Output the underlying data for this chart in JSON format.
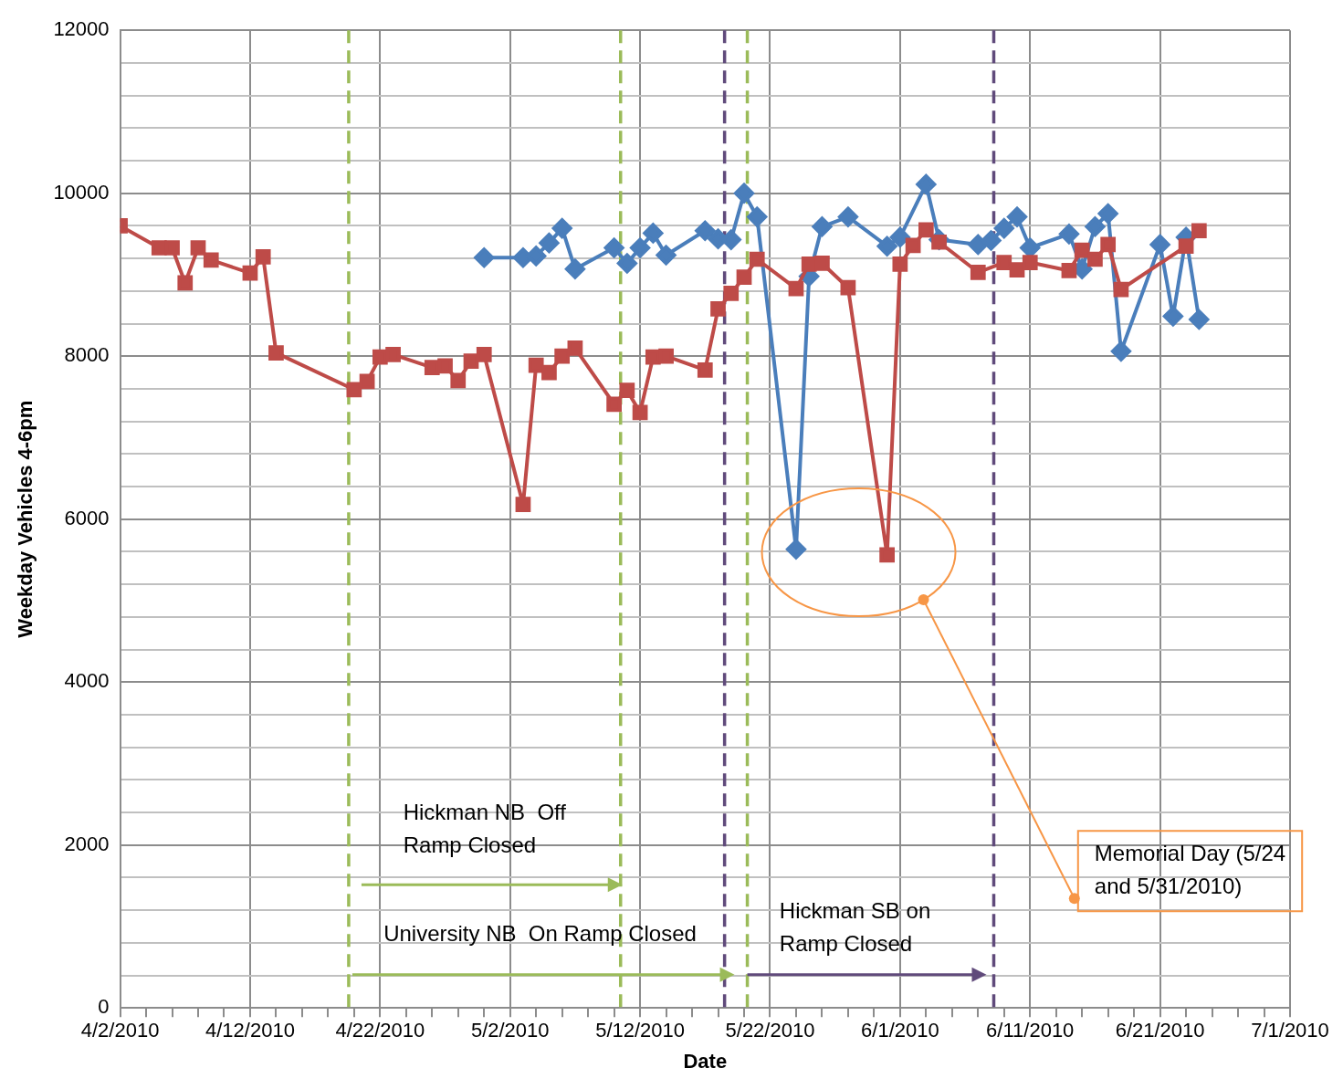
{
  "chart_data": {
    "type": "line",
    "xlabel": "Date",
    "ylabel": "Weekday Vehicles 4-6pm",
    "grid": true,
    "legend": false,
    "line_style": "solid",
    "xlim": [
      "2010-04-02",
      "2010-07-01"
    ],
    "xticks": [
      {
        "value": "2010-04-02",
        "label": "4/2/2010"
      },
      {
        "value": "2010-04-04",
        "label": null
      },
      {
        "value": "2010-04-06",
        "label": null
      },
      {
        "value": "2010-04-08",
        "label": null
      },
      {
        "value": "2010-04-10",
        "label": null
      },
      {
        "value": "2010-04-12",
        "label": "4/12/2010"
      },
      {
        "value": "2010-04-14",
        "label": null
      },
      {
        "value": "2010-04-16",
        "label": null
      },
      {
        "value": "2010-04-18",
        "label": null
      },
      {
        "value": "2010-04-20",
        "label": null
      },
      {
        "value": "2010-04-22",
        "label": "4/22/2010"
      },
      {
        "value": "2010-04-24",
        "label": null
      },
      {
        "value": "2010-04-26",
        "label": null
      },
      {
        "value": "2010-04-28",
        "label": null
      },
      {
        "value": "2010-04-30",
        "label": null
      },
      {
        "value": "2010-05-02",
        "label": "5/2/2010"
      },
      {
        "value": "2010-05-04",
        "label": null
      },
      {
        "value": "2010-05-06",
        "label": null
      },
      {
        "value": "2010-05-08",
        "label": null
      },
      {
        "value": "2010-05-10",
        "label": null
      },
      {
        "value": "2010-05-12",
        "label": "5/12/2010"
      },
      {
        "value": "2010-05-14",
        "label": null
      },
      {
        "value": "2010-05-16",
        "label": null
      },
      {
        "value": "2010-05-18",
        "label": null
      },
      {
        "value": "2010-05-20",
        "label": null
      },
      {
        "value": "2010-05-22",
        "label": "5/22/2010"
      },
      {
        "value": "2010-05-24",
        "label": null
      },
      {
        "value": "2010-05-26",
        "label": null
      },
      {
        "value": "2010-05-28",
        "label": null
      },
      {
        "value": "2010-05-30",
        "label": null
      },
      {
        "value": "2010-06-01",
        "label": "6/1/2010"
      },
      {
        "value": "2010-06-03",
        "label": null
      },
      {
        "value": "2010-06-05",
        "label": null
      },
      {
        "value": "2010-06-07",
        "label": null
      },
      {
        "value": "2010-06-09",
        "label": null
      },
      {
        "value": "2010-06-11",
        "label": "6/11/2010"
      },
      {
        "value": "2010-06-13",
        "label": null
      },
      {
        "value": "2010-06-15",
        "label": null
      },
      {
        "value": "2010-06-17",
        "label": null
      },
      {
        "value": "2010-06-19",
        "label": null
      },
      {
        "value": "2010-06-21",
        "label": "6/21/2010"
      },
      {
        "value": "2010-06-23",
        "label": null
      },
      {
        "value": "2010-06-25",
        "label": null
      },
      {
        "value": "2010-06-27",
        "label": null
      },
      {
        "value": "2010-06-29",
        "label": null
      },
      {
        "value": "2010-07-01",
        "label": "7/1/2010"
      }
    ],
    "ylim": [
      0,
      12000
    ],
    "yticks": [
      0,
      {
        "value": 400,
        "label": null
      },
      {
        "value": 800,
        "label": null
      },
      {
        "value": 1200,
        "label": null
      },
      {
        "value": 1600,
        "label": null
      },
      2000,
      {
        "value": 2400,
        "label": null
      },
      {
        "value": 2800,
        "label": null
      },
      {
        "value": 3200,
        "label": null
      },
      {
        "value": 3600,
        "label": null
      },
      4000,
      {
        "value": 4400,
        "label": null
      },
      {
        "value": 4800,
        "label": null
      },
      {
        "value": 5200,
        "label": null
      },
      {
        "value": 5600,
        "label": null
      },
      6000,
      {
        "value": 6400,
        "label": null
      },
      {
        "value": 6800,
        "label": null
      },
      {
        "value": 7200,
        "label": null
      },
      {
        "value": 7600,
        "label": null
      },
      8000,
      {
        "value": 8400,
        "label": null
      },
      {
        "value": 8800,
        "label": null
      },
      {
        "value": 9200,
        "label": null
      },
      {
        "value": 9600,
        "label": null
      },
      10000,
      {
        "value": 10400,
        "label": null
      },
      {
        "value": 10800,
        "label": null
      },
      {
        "value": 11200,
        "label": null
      },
      {
        "value": 11600,
        "label": null
      },
      12000
    ],
    "series": [
      {
        "color": "#be4b48",
        "marker": "square",
        "x": [
          "2010-04-02",
          "2010-04-05",
          "2010-04-06",
          "2010-04-07",
          "2010-04-08",
          "2010-04-09",
          "2010-04-12",
          "2010-04-13",
          "2010-04-14",
          "2010-04-20",
          "2010-04-21",
          "2010-04-22",
          "2010-04-23",
          "2010-04-26",
          "2010-04-27",
          "2010-04-28",
          "2010-04-29",
          "2010-04-30",
          "2010-05-03",
          "2010-05-04",
          "2010-05-05",
          "2010-05-06",
          "2010-05-07",
          "2010-05-10",
          "2010-05-11",
          "2010-05-12",
          "2010-05-13",
          "2010-05-14",
          "2010-05-17",
          "2010-05-18",
          "2010-05-19",
          "2010-05-20",
          "2010-05-21",
          "2010-05-24",
          "2010-05-25",
          "2010-05-26",
          "2010-05-28",
          "2010-05-31",
          "2010-06-01",
          "2010-06-02",
          "2010-06-03",
          "2010-06-04",
          "2010-06-07",
          "2010-06-09",
          "2010-06-10",
          "2010-06-11",
          "2010-06-14",
          "2010-06-15",
          "2010-06-16",
          "2010-06-17",
          "2010-06-18",
          "2010-06-23",
          "2010-06-24"
        ],
        "values": [
          9600,
          9330,
          9330,
          8900,
          9330,
          9180,
          9020,
          9220,
          8040,
          7590,
          7690,
          7990,
          8020,
          7860,
          7880,
          7700,
          7940,
          8020,
          6180,
          7890,
          7800,
          8000,
          8100,
          7410,
          7580,
          7310,
          7990,
          8000,
          7830,
          8580,
          8770,
          8970,
          9190,
          8830,
          9130,
          9140,
          8840,
          5560,
          9130,
          9360,
          9550,
          9400,
          9030,
          9150,
          9060,
          9150,
          9050,
          9300,
          9190,
          9370,
          8820,
          9350,
          9540
        ]
      },
      {
        "color": "#4a7ebb",
        "marker": "diamond",
        "x": [
          "2010-04-30",
          "2010-05-03",
          "2010-05-04",
          "2010-05-05",
          "2010-05-06",
          "2010-05-07",
          "2010-05-10",
          "2010-05-11",
          "2010-05-12",
          "2010-05-13",
          "2010-05-14",
          "2010-05-17",
          "2010-05-18",
          "2010-05-19",
          "2010-05-20",
          "2010-05-21",
          "2010-05-24",
          "2010-05-25",
          "2010-05-26",
          "2010-05-28",
          "2010-05-31",
          "2010-06-01",
          "2010-06-03",
          "2010-06-04",
          "2010-06-07",
          "2010-06-08",
          "2010-06-09",
          "2010-06-10",
          "2010-06-11",
          "2010-06-14",
          "2010-06-15",
          "2010-06-16",
          "2010-06-17",
          "2010-06-18",
          "2010-06-21",
          "2010-06-22",
          "2010-06-23",
          "2010-06-24"
        ],
        "values": [
          9210,
          9210,
          9230,
          9390,
          9570,
          9070,
          9330,
          9140,
          9330,
          9510,
          9240,
          9540,
          9440,
          9430,
          10000,
          9710,
          5630,
          8980,
          9590,
          9710,
          9350,
          9460,
          10110,
          9430,
          9370,
          9420,
          9570,
          9710,
          9330,
          9500,
          9070,
          9590,
          9750,
          8060,
          9370,
          8490,
          9460,
          8450
        ]
      }
    ],
    "ref_lines": [
      {
        "axis": "x",
        "value": "2010-04-19T14:00",
        "color": "#9bbb59",
        "line_style": "dashed"
      },
      {
        "axis": "x",
        "value": "2010-05-10T12:00",
        "color": "#9bbb59",
        "line_style": "dashed"
      },
      {
        "axis": "x",
        "value": "2010-05-18T12:00",
        "color": "#604a7b",
        "line_style": "dashed"
      },
      {
        "axis": "x",
        "value": "2010-05-20T06:00",
        "color": "#9bbb59",
        "line_style": "dashed"
      },
      {
        "axis": "x",
        "value": "2010-06-08T05:00",
        "color": "#604a7b",
        "line_style": "dashed"
      }
    ],
    "annotations": [
      "Hickman NB  Off Ramp Closed",
      "University NB  On Ramp Closed",
      "Hickman SB on Ramp Closed",
      "Memorial Day (5/24 and 5/31/2010)"
    ]
  }
}
